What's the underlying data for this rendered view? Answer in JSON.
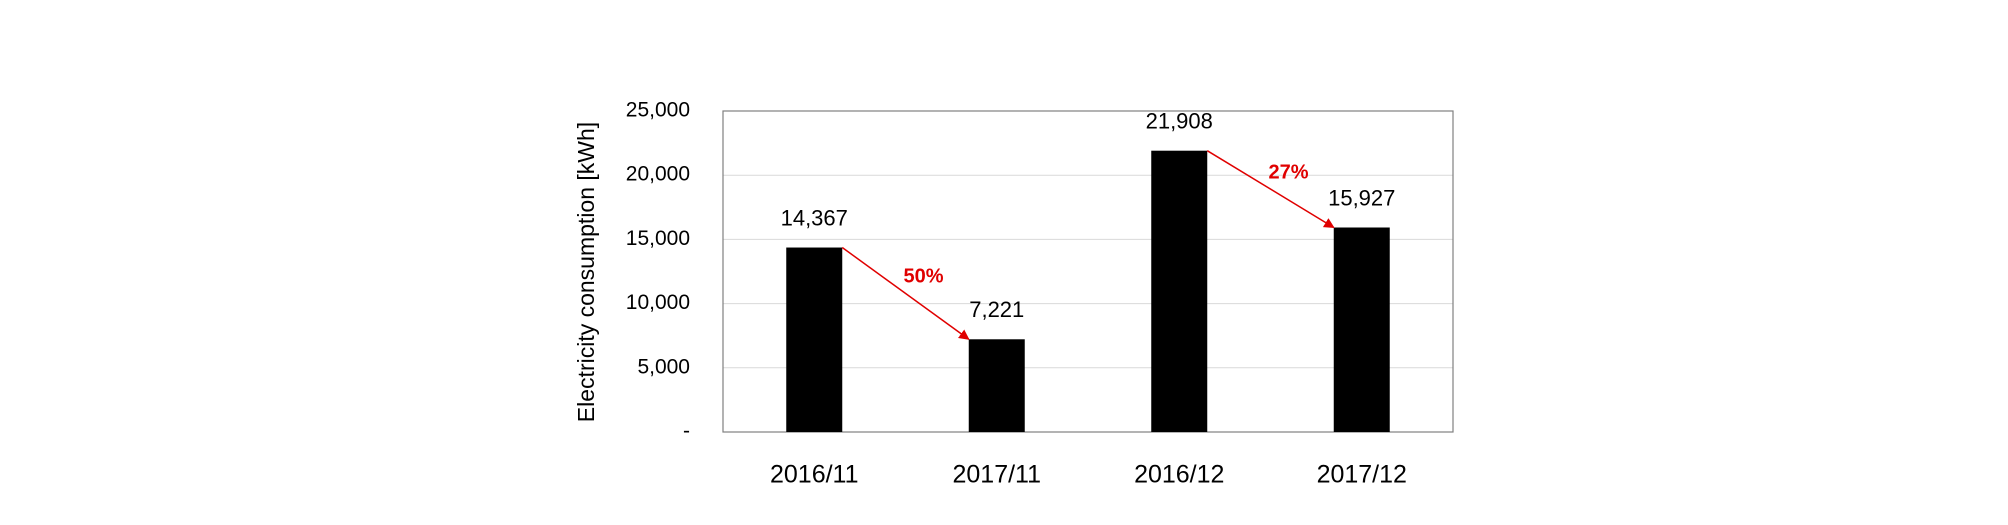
{
  "chart_data": {
    "type": "bar",
    "y_label": "Electricity consumption [kWh]",
    "categories": [
      "2016/11",
      "2017/11",
      "2016/12",
      "2017/12"
    ],
    "values": [
      14367,
      7221,
      21908,
      15927
    ],
    "value_labels": [
      "14,367",
      "7,221",
      "21,908",
      "15,927"
    ],
    "color": "#000000",
    "ylim": [
      0,
      25000
    ],
    "yticks": [
      {
        "value": 0,
        "label": "-"
      },
      {
        "value": 5000,
        "label": "5,000"
      },
      {
        "value": 10000,
        "label": "10,000"
      },
      {
        "value": 15000,
        "label": "15,000"
      },
      {
        "value": 20000,
        "label": "20,000"
      },
      {
        "value": 25000,
        "label": "25,000"
      }
    ],
    "grid": true,
    "annotations": [
      "50%",
      "27%"
    ],
    "annotation_color": "#e00000"
  }
}
